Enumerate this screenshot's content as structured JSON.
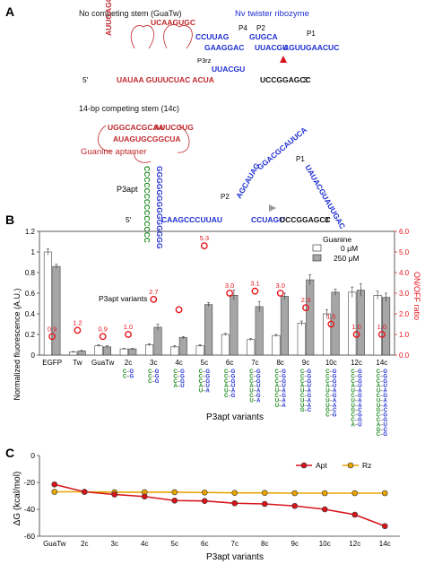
{
  "panels": {
    "a": {
      "letter": "A",
      "top_title": "No competing stem (GuaTw)",
      "ribozyme_label": "Nv twister ribozyme",
      "stem_p1": "P1",
      "stem_p2": "P2",
      "stem_p4": "P4",
      "stem_p3rz": "P3rz",
      "bottom_title": "14-bp competing stem (14c)",
      "aptamer_label": "Guanine aptamer",
      "p3apt": "P3apt",
      "prime5": "5'",
      "prime3": "3'",
      "top_seq": {
        "lower_strand": "UAUAA GUUUCUAC ACUA",
        "tail": "UCCGGAGCC",
        "loop_left": "AUUGAGCGUUA",
        "loop_right": "UCAAGUGC",
        "rz_a": "CCUUAG",
        "rz_b": "GAAGGAC",
        "rz_c": "GUGCA",
        "rz_d": "UUACGU",
        "rz_e": "AGUUGAACUC"
      },
      "bottom_seq": {
        "apt_top_left": "UGGCACGCAA",
        "apt_top_right": "AUUCGUG",
        "apt_mid": "AUAGUGCGGCUA",
        "stem_green": "CCCCCCCCCCCCCC",
        "stem_blue": "GGGGGGGGGGGGGG",
        "strand": "CAAGCCCUUAU",
        "tail_blue": "CCUAGC",
        "tail_black": "UCCGGAGCC",
        "rz_top": "UAUACGUAUUGAC",
        "rz_mid": "GGACGCAUUCA",
        "rz_low": "AGCAUAG"
      }
    },
    "b": {
      "letter": "B",
      "legend_title": "Guanine",
      "legend_0": "0 μM",
      "legend_250": "250 μM",
      "inline_label": "P3apt variants",
      "xlabel": "P3apt variants",
      "ylabel": "Normalized fluorescence (A.U.)",
      "y2label": "ON/OFF ratio",
      "bar_colors": {
        "zero": "#ffffff",
        "two_fifty": "#a6a6a6"
      },
      "ratio_color": "#e8141b",
      "stem_colors": {
        "c": "#1a8a1a",
        "g": "#1e2dd2"
      },
      "stem_pairs": [
        [],
        [],
        [],
        [
          "C-G",
          "C-G"
        ],
        [
          "C-G",
          "C-G",
          "C-G"
        ],
        [
          "C-G",
          "C-G",
          "C-G",
          "A-U"
        ],
        [
          "C-G",
          "C-G",
          "C-G",
          "A-U",
          "U-A"
        ],
        [
          "C-G",
          "C-G",
          "C-G",
          "A-U",
          "U-A",
          "C-G"
        ],
        [
          "C-G",
          "C-G",
          "C-G",
          "A-U",
          "U-A",
          "C-G",
          "U-A"
        ],
        [
          "C-G",
          "C-G",
          "C-G",
          "A-U",
          "U-A",
          "C-G",
          "U-A",
          "U-A"
        ],
        [
          "C-G",
          "C-G",
          "C-G",
          "A-U",
          "U-A",
          "C-G",
          "U-A",
          "U-A",
          "G-C"
        ],
        [
          "C-G",
          "C-G",
          "C-G",
          "A-U",
          "U-A",
          "C-G",
          "U-A",
          "U-A",
          "G-C",
          "C-G"
        ],
        [
          "C-G",
          "C-G",
          "C-G",
          "A-U",
          "U-A",
          "C-G",
          "U-A",
          "U-A",
          "G-C",
          "C-G",
          "C-G",
          "A-U"
        ],
        [
          "C-G",
          "C-G",
          "C-G",
          "A-U",
          "U-A",
          "C-G",
          "U-A",
          "U-A",
          "G-C",
          "C-G",
          "C-G",
          "A-U",
          "G-C",
          "C-G"
        ]
      ]
    },
    "c": {
      "letter": "C",
      "ylabel": "ΔG (kcal/mol)",
      "xlabel": "P3apt variants",
      "series_colors": {
        "Apt": "#d7141a",
        "Rz": "#e8a400"
      }
    }
  },
  "chart_data": [
    {
      "type": "bar",
      "categories": [
        "EGFP",
        "Tw",
        "GuaTw",
        "2c",
        "3c",
        "4c",
        "5c",
        "6c",
        "7c",
        "8c",
        "9c",
        "10c",
        "12c",
        "14c"
      ],
      "series": [
        {
          "name": "0 μM",
          "values": [
            1.0,
            0.03,
            0.09,
            0.06,
            0.1,
            0.08,
            0.09,
            0.2,
            0.15,
            0.19,
            0.31,
            0.4,
            0.61,
            0.58
          ]
        },
        {
          "name": "250 μM",
          "values": [
            0.86,
            0.04,
            0.08,
            0.06,
            0.27,
            0.17,
            0.49,
            0.58,
            0.47,
            0.57,
            0.73,
            0.61,
            0.63,
            0.56
          ]
        }
      ],
      "errors": [
        [
          0.03,
          0.005,
          0.01,
          0.005,
          0.01,
          0.01,
          0.01,
          0.01,
          0.01,
          0.01,
          0.02,
          0.04,
          0.05,
          0.04
        ],
        [
          0.02,
          0.005,
          0.01,
          0.005,
          0.03,
          0.01,
          0.02,
          0.05,
          0.05,
          0.03,
          0.05,
          0.03,
          0.06,
          0.04
        ]
      ],
      "ratio": {
        "name": "ON/OFF ratio",
        "values": [
          0.9,
          1.2,
          0.9,
          1.0,
          2.7,
          2.2,
          5.3,
          3.0,
          3.1,
          3.0,
          2.3,
          1.5,
          1.0,
          1.0
        ],
        "labels": [
          "0.9",
          "1.2",
          "0.9",
          "1.0",
          "2.7",
          "",
          "5.3",
          "3.0",
          "3.1",
          "3.0",
          "2.3",
          "1.5",
          "1.0",
          "1.0"
        ]
      },
      "ylim": [
        0,
        1.2
      ],
      "y2lim": [
        0,
        6.0
      ],
      "yticks": [
        "0",
        "0.2",
        "0.4",
        "0.6",
        "0.8",
        "1",
        "1.2"
      ],
      "y2ticks": [
        "0.0",
        "1.0",
        "2.0",
        "3.0",
        "4.0",
        "5.0",
        "6.0"
      ],
      "xlabel": "P3apt variants",
      "ylabel": "Normalized fluorescence (A.U.)",
      "y2label": "ON/OFF ratio",
      "legend_title": "Guanine"
    },
    {
      "type": "line",
      "categories": [
        "GuaTw",
        "2c",
        "3c",
        "4c",
        "5c",
        "6c",
        "7c",
        "8c",
        "9c",
        "10c",
        "12c",
        "14c"
      ],
      "series": [
        {
          "name": "Apt",
          "values": [
            -21.5,
            -27.0,
            -29.0,
            -30.5,
            -33.5,
            -33.8,
            -35.5,
            -36.0,
            -37.5,
            -40.0,
            -44.0,
            -52.5
          ]
        },
        {
          "name": "Rz",
          "values": [
            -27.0,
            -27.0,
            -27.3,
            -27.3,
            -27.3,
            -27.5,
            -27.8,
            -27.8,
            -28.0,
            -28.0,
            -28.0,
            -28.0
          ]
        }
      ],
      "ylim": [
        -60,
        0
      ],
      "yticks": [
        "0",
        "-20",
        "-40",
        "-60"
      ],
      "xlabel": "P3apt variants",
      "ylabel": "ΔG (kcal/mol)",
      "legend_placement": "top-right"
    }
  ]
}
